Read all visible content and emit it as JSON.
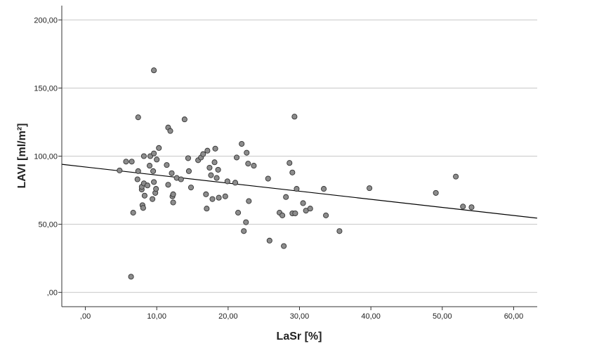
{
  "chart_data": {
    "type": "scatter",
    "title": "",
    "xlabel": "LaSr [%]",
    "ylabel": "LAVI [ml/m²]",
    "xlim": [
      -3.3,
      63.3
    ],
    "ylim": [
      -10.5,
      210.5
    ],
    "x_ticks": [
      0,
      10,
      20,
      30,
      40,
      50,
      60
    ],
    "x_tick_labels": [
      ",00",
      "10,00",
      "20,00",
      "30,00",
      "40,00",
      "50,00",
      "60,00"
    ],
    "y_ticks": [
      0,
      50,
      100,
      150,
      200
    ],
    "y_tick_labels": [
      ",00",
      "50,00",
      "100,00",
      "150,00",
      "200,00"
    ],
    "grid": {
      "horizontal": true,
      "vertical": false
    },
    "colors": {
      "point_fill": "#8c8c8c",
      "point_stroke": "#333333",
      "gridline": "#c8c8c8",
      "axis": "#333333",
      "fit_line": "#000000"
    },
    "fit_line": {
      "x": [
        -3.3,
        63.3
      ],
      "y": [
        94.0,
        54.5
      ]
    },
    "points": [
      {
        "x": 4.8,
        "y": 89.5
      },
      {
        "x": 5.7,
        "y": 96.0
      },
      {
        "x": 6.4,
        "y": 11.5
      },
      {
        "x": 6.5,
        "y": 96.0
      },
      {
        "x": 6.7,
        "y": 58.5
      },
      {
        "x": 7.3,
        "y": 83.0
      },
      {
        "x": 7.4,
        "y": 128.5
      },
      {
        "x": 7.4,
        "y": 89.0
      },
      {
        "x": 7.9,
        "y": 75.5
      },
      {
        "x": 7.9,
        "y": 77.5
      },
      {
        "x": 8.0,
        "y": 64.0
      },
      {
        "x": 8.1,
        "y": 62.0
      },
      {
        "x": 8.2,
        "y": 80.0
      },
      {
        "x": 8.2,
        "y": 100.0
      },
      {
        "x": 8.3,
        "y": 71.0
      },
      {
        "x": 8.7,
        "y": 78.5
      },
      {
        "x": 9.0,
        "y": 93.0
      },
      {
        "x": 9.1,
        "y": 100.0
      },
      {
        "x": 9.4,
        "y": 68.5
      },
      {
        "x": 9.5,
        "y": 89.0
      },
      {
        "x": 9.6,
        "y": 81.0
      },
      {
        "x": 9.6,
        "y": 102.0
      },
      {
        "x": 9.6,
        "y": 163.0
      },
      {
        "x": 9.8,
        "y": 73.0
      },
      {
        "x": 9.9,
        "y": 76.0
      },
      {
        "x": 10.0,
        "y": 97.5
      },
      {
        "x": 10.3,
        "y": 106.0
      },
      {
        "x": 11.4,
        "y": 93.5
      },
      {
        "x": 11.6,
        "y": 79.0
      },
      {
        "x": 11.6,
        "y": 121.0
      },
      {
        "x": 11.9,
        "y": 118.5
      },
      {
        "x": 12.1,
        "y": 87.5
      },
      {
        "x": 12.2,
        "y": 70.5
      },
      {
        "x": 12.3,
        "y": 66.0
      },
      {
        "x": 12.3,
        "y": 72.0
      },
      {
        "x": 12.8,
        "y": 84.0
      },
      {
        "x": 13.4,
        "y": 83.0
      },
      {
        "x": 13.9,
        "y": 127.0
      },
      {
        "x": 14.4,
        "y": 98.5
      },
      {
        "x": 14.5,
        "y": 89.0
      },
      {
        "x": 14.8,
        "y": 77.0
      },
      {
        "x": 15.8,
        "y": 97.0
      },
      {
        "x": 16.2,
        "y": 99.0
      },
      {
        "x": 16.5,
        "y": 101.5
      },
      {
        "x": 16.9,
        "y": 72.0
      },
      {
        "x": 17.0,
        "y": 61.5
      },
      {
        "x": 17.1,
        "y": 104.0
      },
      {
        "x": 17.4,
        "y": 91.5
      },
      {
        "x": 17.6,
        "y": 86.0
      },
      {
        "x": 17.8,
        "y": 68.5
      },
      {
        "x": 18.1,
        "y": 95.5
      },
      {
        "x": 18.2,
        "y": 105.5
      },
      {
        "x": 18.4,
        "y": 84.0
      },
      {
        "x": 18.6,
        "y": 90.0
      },
      {
        "x": 18.7,
        "y": 69.5
      },
      {
        "x": 19.6,
        "y": 70.5
      },
      {
        "x": 19.9,
        "y": 81.5
      },
      {
        "x": 21.0,
        "y": 80.5
      },
      {
        "x": 21.2,
        "y": 99.0
      },
      {
        "x": 21.4,
        "y": 58.5
      },
      {
        "x": 21.9,
        "y": 109.0
      },
      {
        "x": 22.2,
        "y": 45.0
      },
      {
        "x": 22.5,
        "y": 51.5
      },
      {
        "x": 22.6,
        "y": 102.5
      },
      {
        "x": 22.8,
        "y": 94.5
      },
      {
        "x": 22.9,
        "y": 67.0
      },
      {
        "x": 23.6,
        "y": 93.0
      },
      {
        "x": 25.6,
        "y": 83.5
      },
      {
        "x": 25.8,
        "y": 38.0
      },
      {
        "x": 27.2,
        "y": 58.5
      },
      {
        "x": 27.6,
        "y": 56.5
      },
      {
        "x": 27.8,
        "y": 34.0
      },
      {
        "x": 28.1,
        "y": 70.0
      },
      {
        "x": 28.6,
        "y": 95.0
      },
      {
        "x": 29.0,
        "y": 88.0
      },
      {
        "x": 29.0,
        "y": 58.0
      },
      {
        "x": 29.3,
        "y": 129.0
      },
      {
        "x": 29.4,
        "y": 58.0
      },
      {
        "x": 29.6,
        "y": 76.0
      },
      {
        "x": 30.5,
        "y": 65.5
      },
      {
        "x": 30.9,
        "y": 60.0
      },
      {
        "x": 31.5,
        "y": 61.5
      },
      {
        "x": 33.4,
        "y": 76.0
      },
      {
        "x": 33.7,
        "y": 56.5
      },
      {
        "x": 35.6,
        "y": 45.0
      },
      {
        "x": 39.8,
        "y": 76.5
      },
      {
        "x": 49.1,
        "y": 73.0
      },
      {
        "x": 51.9,
        "y": 85.0
      },
      {
        "x": 52.9,
        "y": 63.0
      },
      {
        "x": 54.1,
        "y": 62.5
      }
    ]
  }
}
